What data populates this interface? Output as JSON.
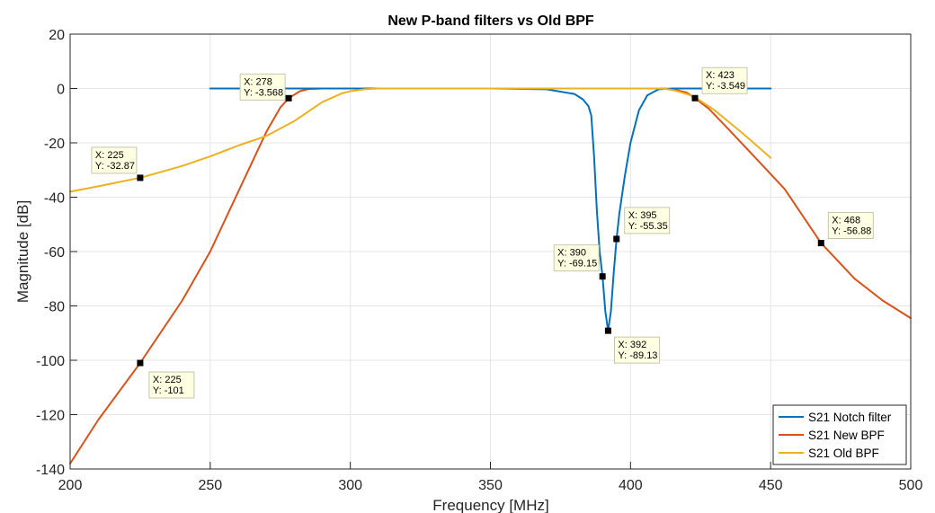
{
  "chart_data": {
    "type": "line",
    "title": "New P-band filters vs Old BPF",
    "xlabel": "Frequency [MHz]",
    "ylabel": "Magnitude [dB]",
    "xlim": [
      200,
      500
    ],
    "ylim": [
      -140,
      20
    ],
    "xticks": [
      "200",
      "250",
      "300",
      "350",
      "400",
      "450",
      "500"
    ],
    "yticks": [
      "20",
      "0",
      "-20",
      "-40",
      "-60",
      "-80",
      "-100",
      "-120",
      "-140"
    ],
    "grid": true,
    "legend_position": "bottom-right",
    "series": [
      {
        "name": "S21 Notch filter",
        "color": "#0072BD",
        "x": [
          250,
          300,
          350,
          370,
          380,
          383,
          385,
          386,
          387,
          388,
          389,
          390,
          391,
          392,
          393,
          394,
          395,
          396,
          398,
          400,
          403,
          406,
          410,
          415,
          420,
          450
        ],
        "y": [
          0,
          0,
          0,
          -0.3,
          -2,
          -4,
          -6.5,
          -10,
          -25,
          -45,
          -60,
          -69.15,
          -82,
          -89.13,
          -82,
          -68,
          -55.35,
          -46,
          -32,
          -20,
          -8,
          -2.5,
          -0.3,
          0,
          0,
          0
        ]
      },
      {
        "name": "S21 New BPF",
        "color": "#D95319",
        "x": [
          200,
          210,
          225,
          240,
          250,
          260,
          270,
          275,
          278,
          282,
          285,
          290,
          300,
          350,
          400,
          410,
          413,
          416,
          420,
          423,
          428,
          435,
          445,
          455,
          468,
          480,
          490,
          500
        ],
        "y": [
          -138,
          -122,
          -101,
          -78,
          -60,
          -38,
          -16,
          -7,
          -3.568,
          -1,
          -0.2,
          0,
          0,
          0,
          0,
          0,
          -0.1,
          -0.5,
          -1.5,
          -3.549,
          -7.5,
          -15,
          -26,
          -37,
          -56.88,
          -70,
          -78,
          -84.5
        ]
      },
      {
        "name": "S21 Old BPF",
        "color": "#EDB120",
        "x": [
          200,
          210,
          225,
          240,
          250,
          260,
          270,
          280,
          290,
          297,
          300,
          305,
          310,
          350,
          400,
          410,
          413,
          416,
          420,
          423,
          430,
          440,
          450
        ],
        "y": [
          -38,
          -36,
          -32.87,
          -28.5,
          -25,
          -21,
          -17.5,
          -12,
          -5,
          -1.8,
          -1,
          -0.3,
          0,
          0,
          0,
          0,
          -0.2,
          -0.8,
          -2,
          -3.2,
          -8,
          -16.5,
          -25.5
        ]
      }
    ],
    "annotations": [
      {
        "x": 278,
        "y": -3.568,
        "lines": [
          "X: 278",
          "Y: -3.568"
        ]
      },
      {
        "x": 225,
        "y": -32.87,
        "lines": [
          "X: 225",
          "Y: -32.87"
        ]
      },
      {
        "x": 225,
        "y": -101,
        "lines": [
          "X: 225",
          "Y: -101"
        ]
      },
      {
        "x": 390,
        "y": -69.15,
        "lines": [
          "X: 390",
          "Y: -69.15"
        ]
      },
      {
        "x": 395,
        "y": -55.35,
        "lines": [
          "X: 395",
          "Y: -55.35"
        ]
      },
      {
        "x": 392,
        "y": -89.13,
        "lines": [
          "X: 392",
          "Y: -89.13"
        ]
      },
      {
        "x": 423,
        "y": -3.549,
        "lines": [
          "X: 423",
          "Y: -3.549"
        ]
      },
      {
        "x": 468,
        "y": -56.88,
        "lines": [
          "X: 468",
          "Y: -56.88"
        ]
      }
    ]
  }
}
